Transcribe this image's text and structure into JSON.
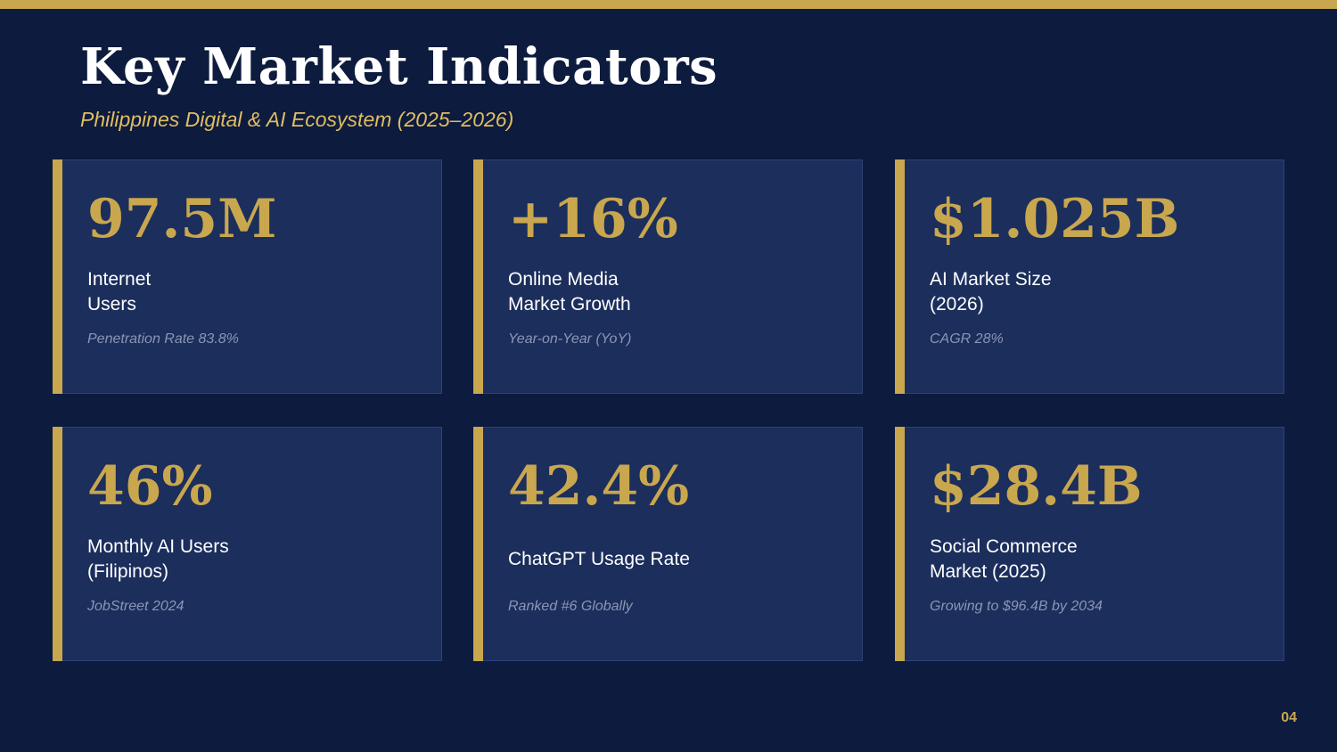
{
  "slide": {
    "title": "Key Market Indicators",
    "subtitle": "Philippines Digital & AI Ecosystem (2025–2026)",
    "page_number": "04"
  },
  "colors": {
    "background": "#0d1b3e",
    "card": "#1b2e5c",
    "accent": "#c9a74e",
    "subtitle": "#e0bd62",
    "note": "#8a96b4"
  },
  "cards": [
    {
      "metric": "97.5M",
      "label": "Internet\nUsers",
      "note": "Penetration Rate 83.8%"
    },
    {
      "metric": "+16%",
      "label": "Online Media\nMarket Growth",
      "note": "Year-on-Year (YoY)"
    },
    {
      "metric": "$1.025B",
      "label": "AI Market Size\n(2026)",
      "note": "CAGR 28%"
    },
    {
      "metric": "46%",
      "label": "Monthly AI Users\n(Filipinos)",
      "note": "JobStreet 2024"
    },
    {
      "metric": "42.4%",
      "label": "ChatGPT Usage Rate",
      "note": "Ranked #6 Globally"
    },
    {
      "metric": "$28.4B",
      "label": "Social Commerce\nMarket (2025)",
      "note": "Growing to $96.4B by 2034"
    }
  ]
}
